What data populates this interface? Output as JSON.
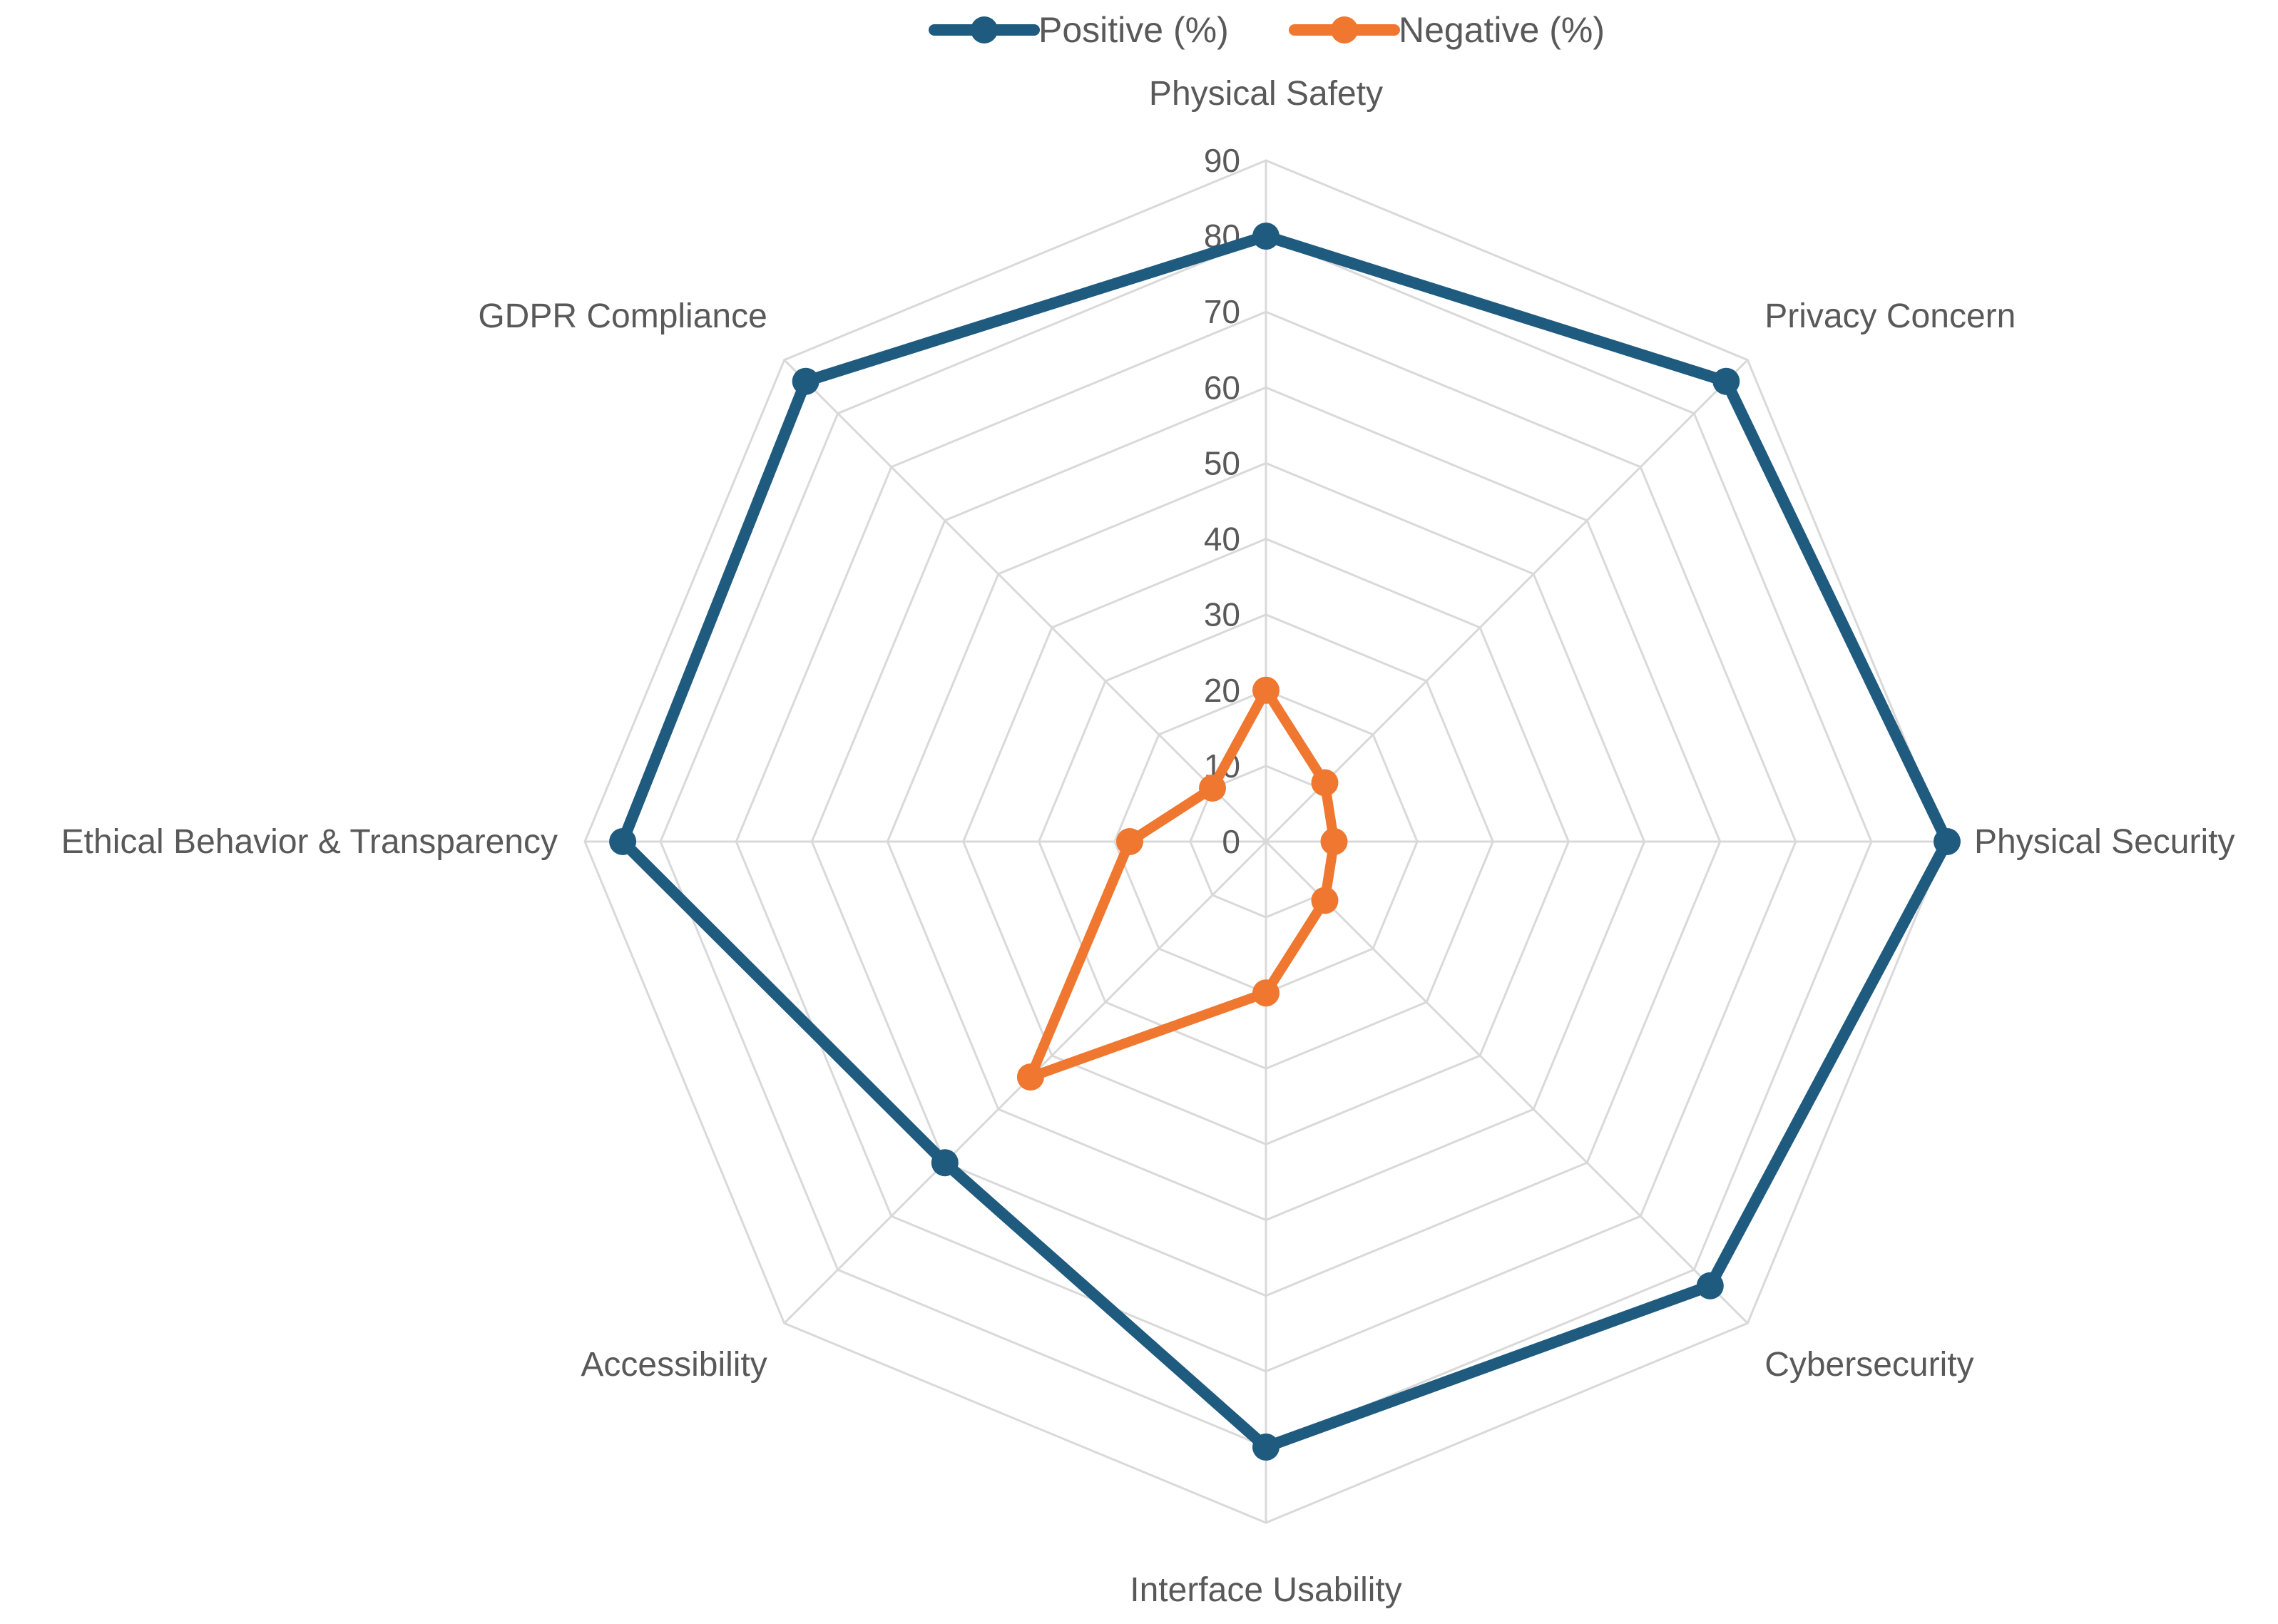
{
  "chart_data": {
    "type": "radar",
    "categories": [
      "Physical Safety",
      "Privacy Concern",
      "Physical Security",
      "Cybersecurity",
      "Interface Usability",
      "Accessibility",
      "Ethical Behavior & Transparency",
      "GDPR Compliance"
    ],
    "series": [
      {
        "name": "Positive (%)",
        "color": "#1f5a7f",
        "values": [
          80,
          86,
          90,
          83,
          80,
          60,
          85,
          86
        ]
      },
      {
        "name": "Negative (%)",
        "color": "#ef7730",
        "values": [
          20,
          11,
          9,
          11,
          20,
          44,
          18,
          10
        ]
      }
    ],
    "rlim": [
      0,
      90
    ],
    "ticks": [
      0,
      10,
      20,
      30,
      40,
      50,
      60,
      70,
      80,
      90
    ],
    "grid": true,
    "legend_position": "top"
  }
}
